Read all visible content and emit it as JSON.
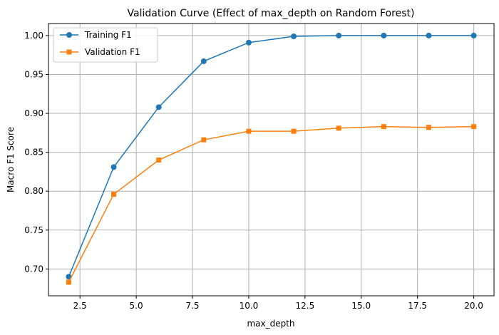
{
  "chart_data": {
    "type": "line",
    "title": "Validation Curve (Effect of max_depth on Random Forest)",
    "xlabel": "max_depth",
    "ylabel": "Macro F1 Score",
    "x": [
      2,
      4,
      6,
      8,
      10,
      12,
      14,
      16,
      18,
      20
    ],
    "series": [
      {
        "name": "Training F1",
        "marker": "circle",
        "color": "#1f77b4",
        "values": [
          0.69,
          0.831,
          0.908,
          0.967,
          0.991,
          0.999,
          1.0,
          1.0,
          1.0,
          1.0
        ]
      },
      {
        "name": "Validation F1",
        "marker": "square",
        "color": "#ff7f0e",
        "values": [
          0.683,
          0.796,
          0.84,
          0.866,
          0.877,
          0.877,
          0.881,
          0.883,
          0.882,
          0.883
        ]
      }
    ],
    "xlim": [
      1.1,
      20.9
    ],
    "ylim": [
      0.6655,
      1.0155
    ],
    "xticks": [
      2.5,
      5.0,
      7.5,
      10.0,
      12.5,
      15.0,
      17.5,
      20.0
    ],
    "xtick_labels": [
      "2.5",
      "5.0",
      "7.5",
      "10.0",
      "12.5",
      "15.0",
      "17.5",
      "20.0"
    ],
    "yticks": [
      0.7,
      0.75,
      0.8,
      0.85,
      0.9,
      0.95,
      1.0
    ],
    "ytick_labels": [
      "0.70",
      "0.75",
      "0.80",
      "0.85",
      "0.90",
      "0.95",
      "1.00"
    ],
    "grid": true,
    "legend_position": "top-left"
  }
}
